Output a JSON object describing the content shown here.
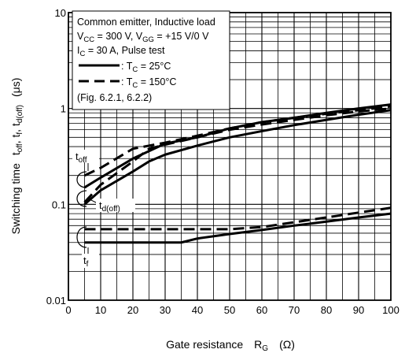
{
  "chart_data": {
    "type": "line",
    "scale": "log-y",
    "xlim": [
      0,
      100
    ],
    "ylim": [
      0.01,
      10
    ],
    "grid": true,
    "x_ticks": [
      "0",
      "10",
      "20",
      "30",
      "40",
      "50",
      "60",
      "70",
      "80",
      "90",
      "100"
    ],
    "y_ticks": [
      "0.01",
      "0.1",
      "1",
      "10"
    ],
    "xlabel": {
      "main": "Gate resistance",
      "symbol": "R",
      "sub": "G",
      "unit": "(Ω)"
    },
    "ylabel": {
      "prefix": "Switching time",
      "t1": "t",
      "s1": "off",
      "sep1": ", t",
      "s2": "f",
      "sep2": ", t",
      "s3": "d(off)",
      "unit": "(μs)"
    },
    "legend": {
      "line1": "Common emitter,  Inductive load",
      "line2": {
        "a": "V",
        "a_sub": "CC",
        "b": " = 300 V, V",
        "b_sub": "GG",
        "c": " = +15 V/0 V"
      },
      "line3": {
        "a": "I",
        "a_sub": "C",
        "b": " = 30 A, Pulse test"
      },
      "entry_solid": {
        "pre": ": T",
        "sub": "C",
        "post": " = 25°C"
      },
      "entry_dashed": {
        "pre": ": T",
        "sub": "C",
        "post": " = 150°C"
      },
      "line6": "(Fig. 6.2.1, 6.2.2)"
    },
    "annotations": {
      "toff": {
        "t": "t",
        "sub": "off"
      },
      "tdoff": {
        "t": "t",
        "sub": "d(off)"
      },
      "tf": {
        "t": "t",
        "sub": "f"
      }
    },
    "series": [
      {
        "curve": "toff",
        "style": "solid",
        "temp_c": 25,
        "x": [
          5,
          10,
          20,
          30,
          40,
          50,
          60,
          70,
          80,
          90,
          100
        ],
        "y": [
          0.15,
          0.19,
          0.3,
          0.43,
          0.5,
          0.62,
          0.72,
          0.8,
          0.9,
          1.0,
          1.1
        ]
      },
      {
        "curve": "toff",
        "style": "dashed",
        "temp_c": 150,
        "x": [
          5,
          10,
          20,
          30,
          40,
          50,
          60,
          70,
          80,
          90,
          100
        ],
        "y": [
          0.2,
          0.24,
          0.38,
          0.44,
          0.52,
          0.62,
          0.72,
          0.8,
          0.88,
          0.96,
          1.05
        ]
      },
      {
        "curve": "td(off)",
        "style": "solid",
        "temp_c": 25,
        "x": [
          5,
          10,
          20,
          25,
          30,
          40,
          50,
          60,
          70,
          80,
          90,
          100
        ],
        "y": [
          0.1,
          0.14,
          0.22,
          0.28,
          0.33,
          0.41,
          0.5,
          0.58,
          0.67,
          0.76,
          0.86,
          0.96
        ]
      },
      {
        "curve": "td(off)",
        "style": "dashed",
        "temp_c": 150,
        "x": [
          5,
          10,
          20,
          25,
          30,
          40,
          50,
          60,
          70,
          80,
          90,
          100
        ],
        "y": [
          0.105,
          0.16,
          0.28,
          0.38,
          0.42,
          0.5,
          0.6,
          0.68,
          0.76,
          0.85,
          0.93,
          1.0
        ]
      },
      {
        "curve": "tf",
        "style": "solid",
        "temp_c": 25,
        "x": [
          5,
          10,
          20,
          30,
          35,
          40,
          50,
          60,
          70,
          80,
          90,
          100
        ],
        "y": [
          0.04,
          0.04,
          0.04,
          0.04,
          0.04,
          0.044,
          0.049,
          0.054,
          0.06,
          0.066,
          0.073,
          0.08
        ]
      },
      {
        "curve": "tf",
        "style": "dashed",
        "temp_c": 150,
        "x": [
          5,
          10,
          20,
          30,
          40,
          50,
          60,
          70,
          80,
          90,
          100
        ],
        "y": [
          0.055,
          0.055,
          0.055,
          0.055,
          0.055,
          0.055,
          0.058,
          0.065,
          0.073,
          0.082,
          0.092
        ]
      }
    ]
  }
}
